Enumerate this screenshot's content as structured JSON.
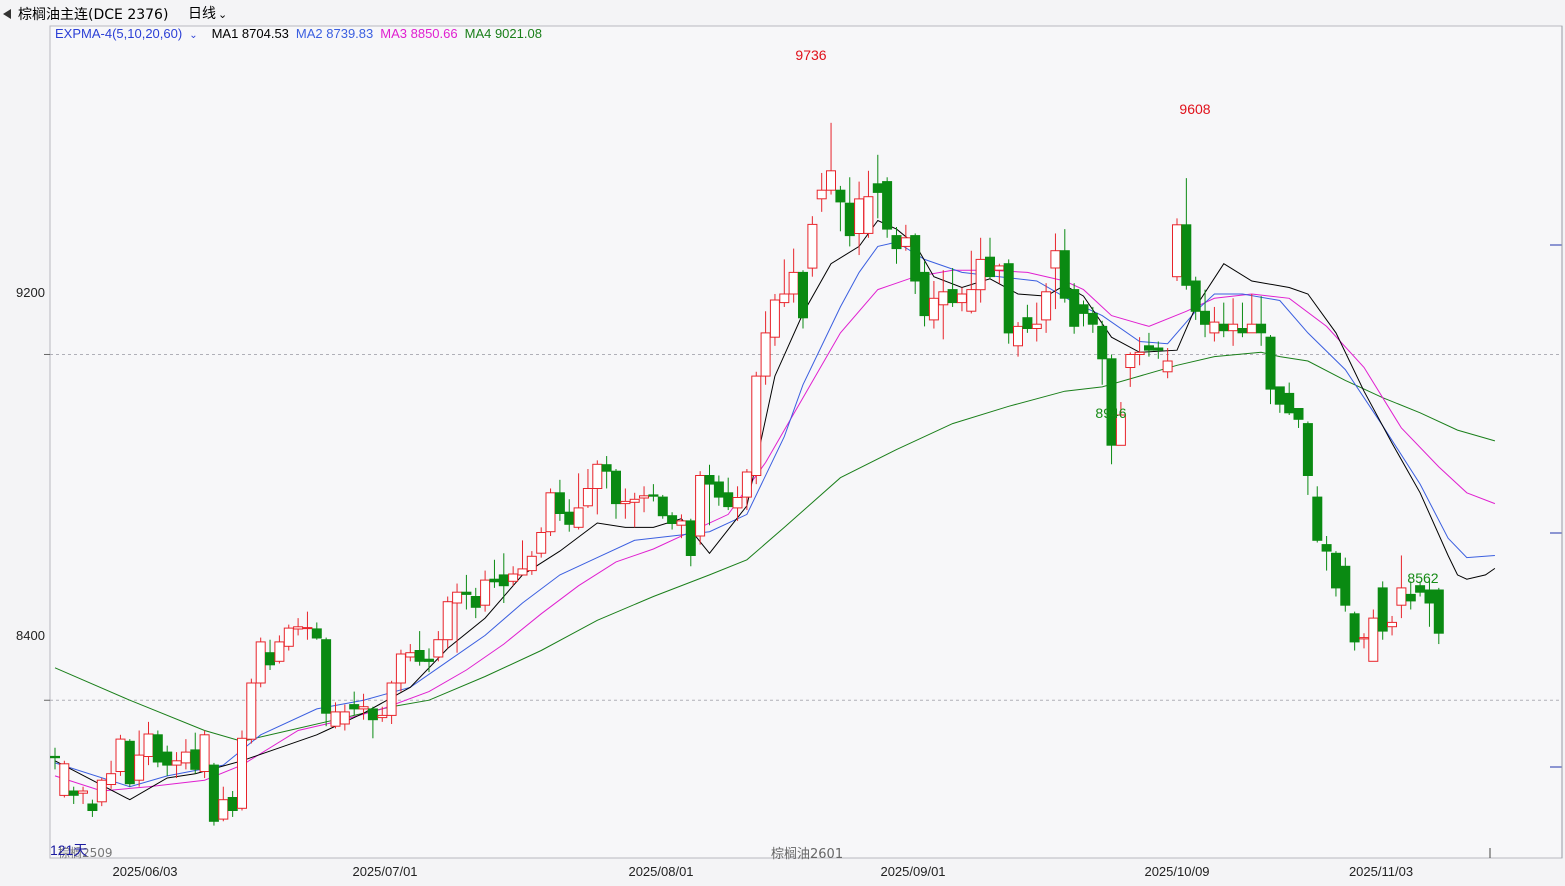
{
  "header": {
    "symbol": "棕榈油主连(DCE 2376)",
    "period": "日线"
  },
  "indicator": {
    "name": "EXPMA-4(5,10,20,60)",
    "ma1": "MA1 8704.53",
    "ma2": "MA2 8739.83",
    "ma3": "MA3 8850.66",
    "ma4": "MA4 9021.08"
  },
  "colors": {
    "up": "#e8242b",
    "down": "#0a8a12",
    "ma1": "#000000",
    "ma2": "#3b5fe0",
    "ma3": "#e020d0",
    "ma4": "#1a7f1a",
    "indicator_name": "#2b3fd6",
    "peak_high": "#e0101a",
    "peak_low": "#158a15"
  },
  "y_axis_labels": [
    "9200",
    "8400"
  ],
  "date_labels": [
    "2025/06/03",
    "2025/07/01",
    "2025/08/01",
    "2025/09/01",
    "2025/10/09",
    "2025/11/03"
  ],
  "peaks": {
    "high1": "9736",
    "high2": "9608",
    "low1": "8946",
    "low2": "8562"
  },
  "footer": {
    "days": "121天",
    "contract_left": "棕榈2509",
    "contract_mid": "棕榈油2601"
  },
  "chart_data": {
    "type": "candlestick",
    "ylim": [
      8035,
      9960
    ],
    "y_ticks": [
      9200,
      8400
    ],
    "candles": [
      [
        8270,
        8267,
        8290,
        8240
      ],
      [
        8180,
        8253,
        8260,
        8175
      ],
      [
        8190,
        8180,
        8200,
        8160
      ],
      [
        8185,
        8190,
        8200,
        8160
      ],
      [
        8160,
        8145,
        8170,
        8130
      ],
      [
        8165,
        8215,
        8220,
        8155
      ],
      [
        8205,
        8230,
        8260,
        8195
      ],
      [
        8235,
        8310,
        8320,
        8225
      ],
      [
        8305,
        8207,
        8310,
        8200
      ],
      [
        8215,
        8273,
        8330,
        8200
      ],
      [
        8270,
        8322,
        8350,
        8250
      ],
      [
        8320,
        8257,
        8330,
        8245
      ],
      [
        8280,
        8250,
        8295,
        8225
      ],
      [
        8250,
        8260,
        8280,
        8220
      ],
      [
        8255,
        8280,
        8310,
        8240
      ],
      [
        8285,
        8240,
        8325,
        8230
      ],
      [
        8235,
        8320,
        8330,
        8220
      ],
      [
        8250,
        8120,
        8255,
        8110
      ],
      [
        8125,
        8170,
        8200,
        8120
      ],
      [
        8175,
        8145,
        8190,
        8130
      ],
      [
        8150,
        8312,
        8330,
        8145
      ],
      [
        8310,
        8440,
        8450,
        8300
      ],
      [
        8440,
        8535,
        8545,
        8430
      ],
      [
        8510,
        8482,
        8540,
        8470
      ],
      [
        8490,
        8535,
        8550,
        8485
      ],
      [
        8525,
        8567,
        8575,
        8515
      ],
      [
        8565,
        8570,
        8590,
        8550
      ],
      [
        8568,
        8568,
        8605,
        8540
      ],
      [
        8565,
        8544,
        8580,
        8540
      ],
      [
        8540,
        8370,
        8545,
        8340
      ],
      [
        8340,
        8373,
        8395,
        8335
      ],
      [
        8345,
        8373,
        8390,
        8330
      ],
      [
        8390,
        8380,
        8420,
        8365
      ],
      [
        8380,
        8385,
        8415,
        8355
      ],
      [
        8380,
        8355,
        8385,
        8312
      ],
      [
        8360,
        8365,
        8385,
        8350
      ],
      [
        8365,
        8440,
        8445,
        8345
      ],
      [
        8440,
        8507,
        8517,
        8420
      ],
      [
        8500,
        8510,
        8530,
        8490
      ],
      [
        8515,
        8490,
        8560,
        8480
      ],
      [
        8495,
        8490,
        8520,
        8465
      ],
      [
        8500,
        8540,
        8560,
        8490
      ],
      [
        8540,
        8628,
        8640,
        8520
      ],
      [
        8625,
        8650,
        8670,
        8510
      ],
      [
        8650,
        8645,
        8690,
        8610
      ],
      [
        8640,
        8615,
        8660,
        8590
      ],
      [
        8620,
        8678,
        8700,
        8605
      ],
      [
        8680,
        8674,
        8725,
        8660
      ],
      [
        8690,
        8665,
        8740,
        8625
      ],
      [
        8675,
        8692,
        8710,
        8665
      ],
      [
        8690,
        8704,
        8770,
        8690
      ],
      [
        8700,
        8733,
        8745,
        8690
      ],
      [
        8740,
        8788,
        8800,
        8730
      ],
      [
        8790,
        8880,
        8890,
        8780
      ],
      [
        8880,
        8832,
        8910,
        8815
      ],
      [
        8835,
        8807,
        8865,
        8790
      ],
      [
        8800,
        8845,
        8925,
        8795
      ],
      [
        8850,
        8890,
        8935,
        8845
      ],
      [
        8890,
        8946,
        8955,
        8830
      ],
      [
        8945,
        8930,
        8965,
        8890
      ],
      [
        8930,
        8855,
        8935,
        8820
      ],
      [
        8855,
        8860,
        8890,
        8820
      ],
      [
        8858,
        8865,
        8880,
        8800
      ],
      [
        8868,
        8873,
        8895,
        8835
      ],
      [
        8875,
        8872,
        8900,
        8860
      ],
      [
        8870,
        8827,
        8875,
        8820
      ],
      [
        8827,
        8809,
        8835,
        8795
      ],
      [
        8805,
        8815,
        8830,
        8775
      ],
      [
        8815,
        8735,
        8820,
        8710
      ],
      [
        8780,
        8920,
        8930,
        8760
      ],
      [
        8920,
        8900,
        8945,
        8805
      ],
      [
        8905,
        8870,
        8920,
        8850
      ],
      [
        8880,
        8848,
        8915,
        8840
      ],
      [
        8845,
        8869,
        8895,
        8815
      ],
      [
        8870,
        8928,
        8935,
        8840
      ],
      [
        8920,
        9150,
        9160,
        8900
      ],
      [
        9150,
        9250,
        9300,
        9130
      ],
      [
        9240,
        9326,
        9340,
        9220
      ],
      [
        9320,
        9340,
        9420,
        9310
      ],
      [
        9340,
        9390,
        9445,
        9320
      ],
      [
        9390,
        9285,
        9395,
        9260
      ],
      [
        9400,
        9501,
        9520,
        9380
      ],
      [
        9560,
        9580,
        9620,
        9530
      ],
      [
        9580,
        9625,
        9736,
        9570
      ],
      [
        9580,
        9553,
        9590,
        9485
      ],
      [
        9550,
        9475,
        9610,
        9450
      ],
      [
        9480,
        9560,
        9600,
        9430
      ],
      [
        9480,
        9565,
        9625,
        9470
      ],
      [
        9595,
        9575,
        9662,
        9515
      ],
      [
        9600,
        9490,
        9610,
        9470
      ],
      [
        9475,
        9445,
        9495,
        9410
      ],
      [
        9450,
        9470,
        9500,
        9440
      ],
      [
        9475,
        9370,
        9480,
        9340
      ],
      [
        9390,
        9290,
        9415,
        9265
      ],
      [
        9280,
        9330,
        9370,
        9260
      ],
      [
        9315,
        9345,
        9395,
        9235
      ],
      [
        9350,
        9320,
        9400,
        9310
      ],
      [
        9320,
        9340,
        9355,
        9300
      ],
      [
        9300,
        9350,
        9440,
        9295
      ],
      [
        9350,
        9420,
        9470,
        9320
      ],
      [
        9425,
        9380,
        9470,
        9375
      ],
      [
        9395,
        9405,
        9410,
        9365
      ],
      [
        9410,
        9250,
        9420,
        9225
      ],
      [
        9220,
        9265,
        9275,
        9195
      ],
      [
        9285,
        9260,
        9315,
        9250
      ],
      [
        9260,
        9270,
        9320,
        9230
      ],
      [
        9280,
        9345,
        9365,
        9250
      ],
      [
        9400,
        9440,
        9480,
        9305
      ],
      [
        9440,
        9330,
        9490,
        9320
      ],
      [
        9350,
        9265,
        9365,
        9248
      ],
      [
        9315,
        9295,
        9325,
        9265
      ],
      [
        9295,
        9270,
        9310,
        9250
      ],
      [
        9265,
        9190,
        9278,
        9130
      ],
      [
        9190,
        8990,
        9200,
        8946
      ],
      [
        8990,
        9060,
        9090,
        8995
      ],
      [
        9170,
        9200,
        9205,
        9125
      ],
      [
        9200,
        9205,
        9240,
        9175
      ],
      [
        9220,
        9210,
        9250,
        9195
      ],
      [
        9215,
        9210,
        9230,
        9190
      ],
      [
        9160,
        9185,
        9215,
        9145
      ],
      [
        9380,
        9500,
        9515,
        9370
      ],
      [
        9500,
        9360,
        9608,
        9350
      ],
      [
        9370,
        9300,
        9380,
        9280
      ],
      [
        9300,
        9270,
        9350,
        9240
      ],
      [
        9250,
        9275,
        9310,
        9230
      ],
      [
        9270,
        9255,
        9320,
        9240
      ],
      [
        9255,
        9270,
        9330,
        9220
      ],
      [
        9260,
        9250,
        9320,
        9240
      ],
      [
        9250,
        9270,
        9340,
        9255
      ],
      [
        9270,
        9250,
        9335,
        9220
      ],
      [
        9240,
        9120,
        9245,
        9085
      ],
      [
        9125,
        9085,
        9125,
        9065
      ],
      [
        9110,
        9065,
        9135,
        9060
      ],
      [
        9075,
        9050,
        9075,
        9030
      ],
      [
        9040,
        8920,
        9045,
        8875
      ],
      [
        8870,
        8770,
        8895,
        8765
      ],
      [
        8760,
        8745,
        8780,
        8700
      ],
      [
        8740,
        8660,
        8745,
        8640
      ],
      [
        8710,
        8620,
        8730,
        8605
      ],
      [
        8600,
        8535,
        8605,
        8515
      ],
      [
        8542,
        8545,
        8555,
        8520
      ],
      [
        8490,
        8590,
        8610,
        8565
      ],
      [
        8660,
        8560,
        8675,
        8540
      ],
      [
        8570,
        8580,
        8595,
        8550
      ],
      [
        8620,
        8660,
        8735,
        8590
      ],
      [
        8645,
        8630,
        8675,
        8610
      ],
      [
        8665,
        8650,
        8675,
        8640
      ],
      [
        8655,
        8625,
        8680,
        8570
      ],
      [
        8655,
        8555,
        8660,
        8530
      ]
    ],
    "ma1": [
      [
        0,
        8260
      ],
      [
        8,
        8170
      ],
      [
        12,
        8220
      ],
      [
        15,
        8230
      ],
      [
        20,
        8260
      ],
      [
        24,
        8290
      ],
      [
        28,
        8320
      ],
      [
        29,
        8330
      ],
      [
        33,
        8370
      ],
      [
        38,
        8430
      ],
      [
        42,
        8520
      ],
      [
        46,
        8590
      ],
      [
        50,
        8690
      ],
      [
        54,
        8745
      ],
      [
        58,
        8810
      ],
      [
        61,
        8800
      ],
      [
        64,
        8800
      ],
      [
        67,
        8820
      ],
      [
        70,
        8740
      ],
      [
        74,
        8850
      ],
      [
        77,
        9150
      ],
      [
        80,
        9295
      ],
      [
        83,
        9410
      ],
      [
        86,
        9450
      ],
      [
        88,
        9510
      ],
      [
        90,
        9490
      ],
      [
        92,
        9455
      ],
      [
        94,
        9380
      ],
      [
        97,
        9355
      ],
      [
        100,
        9375
      ],
      [
        103,
        9340
      ],
      [
        106,
        9335
      ],
      [
        108,
        9360
      ],
      [
        110,
        9335
      ],
      [
        113,
        9240
      ],
      [
        116,
        9205
      ],
      [
        120,
        9210
      ],
      [
        122,
        9310
      ],
      [
        125,
        9410
      ],
      [
        128,
        9370
      ],
      [
        132,
        9355
      ],
      [
        134,
        9340
      ],
      [
        137,
        9250
      ],
      [
        140,
        9115
      ],
      [
        143,
        8995
      ],
      [
        146,
        8880
      ],
      [
        149,
        8735
      ],
      [
        150,
        8690
      ],
      [
        151,
        8680
      ],
      [
        153,
        8690
      ],
      [
        154,
        8705
      ]
    ],
    "ma2": [
      [
        0,
        8255
      ],
      [
        8,
        8200
      ],
      [
        12,
        8225
      ],
      [
        18,
        8250
      ],
      [
        22,
        8320
      ],
      [
        28,
        8380
      ],
      [
        33,
        8400
      ],
      [
        38,
        8430
      ],
      [
        42,
        8490
      ],
      [
        46,
        8550
      ],
      [
        50,
        8625
      ],
      [
        54,
        8690
      ],
      [
        58,
        8730
      ],
      [
        62,
        8770
      ],
      [
        66,
        8780
      ],
      [
        70,
        8790
      ],
      [
        74,
        8830
      ],
      [
        78,
        9010
      ],
      [
        80,
        9130
      ],
      [
        84,
        9310
      ],
      [
        86,
        9390
      ],
      [
        88,
        9450
      ],
      [
        90,
        9460
      ],
      [
        93,
        9420
      ],
      [
        97,
        9390
      ],
      [
        101,
        9380
      ],
      [
        105,
        9370
      ],
      [
        109,
        9320
      ],
      [
        112,
        9290
      ],
      [
        116,
        9230
      ],
      [
        119,
        9225
      ],
      [
        122,
        9300
      ],
      [
        124,
        9340
      ],
      [
        127,
        9340
      ],
      [
        131,
        9325
      ],
      [
        134,
        9250
      ],
      [
        138,
        9165
      ],
      [
        142,
        9035
      ],
      [
        146,
        8900
      ],
      [
        149,
        8775
      ],
      [
        151,
        8730
      ],
      [
        154,
        8735
      ]
    ],
    "ma3": [
      [
        0,
        8225
      ],
      [
        5,
        8190
      ],
      [
        10,
        8200
      ],
      [
        16,
        8215
      ],
      [
        20,
        8250
      ],
      [
        26,
        8330
      ],
      [
        30,
        8350
      ],
      [
        35,
        8380
      ],
      [
        40,
        8420
      ],
      [
        44,
        8470
      ],
      [
        48,
        8530
      ],
      [
        52,
        8600
      ],
      [
        56,
        8665
      ],
      [
        60,
        8720
      ],
      [
        64,
        8750
      ],
      [
        68,
        8790
      ],
      [
        72,
        8830
      ],
      [
        76,
        8950
      ],
      [
        80,
        9100
      ],
      [
        84,
        9250
      ],
      [
        88,
        9350
      ],
      [
        92,
        9380
      ],
      [
        96,
        9395
      ],
      [
        100,
        9395
      ],
      [
        104,
        9390
      ],
      [
        108,
        9370
      ],
      [
        110,
        9350
      ],
      [
        113,
        9290
      ],
      [
        117,
        9265
      ],
      [
        121,
        9300
      ],
      [
        124,
        9330
      ],
      [
        128,
        9340
      ],
      [
        132,
        9330
      ],
      [
        136,
        9265
      ],
      [
        140,
        9170
      ],
      [
        144,
        9030
      ],
      [
        148,
        8940
      ],
      [
        151,
        8880
      ],
      [
        154,
        8855
      ]
    ],
    "ma4": [
      [
        0,
        8475
      ],
      [
        8,
        8400
      ],
      [
        16,
        8330
      ],
      [
        20,
        8305
      ],
      [
        25,
        8330
      ],
      [
        30,
        8355
      ],
      [
        36,
        8385
      ],
      [
        40,
        8400
      ],
      [
        46,
        8455
      ],
      [
        52,
        8515
      ],
      [
        58,
        8585
      ],
      [
        64,
        8640
      ],
      [
        70,
        8690
      ],
      [
        74,
        8725
      ],
      [
        78,
        8800
      ],
      [
        84,
        8915
      ],
      [
        90,
        8980
      ],
      [
        96,
        9040
      ],
      [
        102,
        9080
      ],
      [
        108,
        9115
      ],
      [
        112,
        9125
      ],
      [
        116,
        9150
      ],
      [
        120,
        9175
      ],
      [
        124,
        9195
      ],
      [
        129,
        9205
      ],
      [
        131,
        9195
      ],
      [
        134,
        9185
      ],
      [
        138,
        9140
      ],
      [
        142,
        9100
      ],
      [
        146,
        9065
      ],
      [
        150,
        9025
      ],
      [
        154,
        9000
      ]
    ]
  }
}
